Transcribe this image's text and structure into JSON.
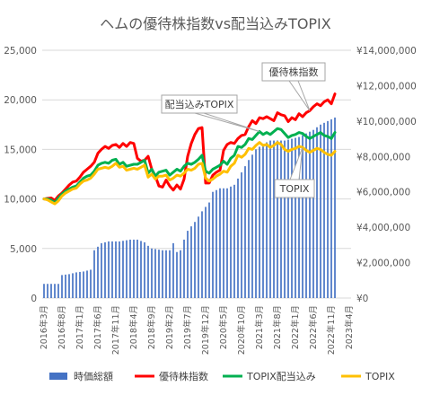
{
  "chart_data": {
    "type": "bar+line",
    "title": "ヘムの優待株指数vs配当込みTOPIX",
    "y_left": {
      "ticks": [
        "0",
        "5,000",
        "10,000",
        "15,000",
        "20,000",
        "25,000"
      ],
      "lim": [
        0,
        25000
      ]
    },
    "y_right": {
      "ticks": [
        "¥0",
        "¥2,000,000",
        "¥4,000,000",
        "¥6,000,000",
        "¥8,000,000",
        "¥10,000,000",
        "¥12,000,000",
        "¥14,000,000"
      ],
      "lim": [
        0,
        14000000
      ]
    },
    "x_labels": [
      "2016年3月",
      "2016年8月",
      "2017年1月",
      "2017年6月",
      "2017年11月",
      "2018年4月",
      "2018年9月",
      "2019年2月",
      "2019年7月",
      "2019年12月",
      "2020年5月",
      "2020年10月",
      "2021年3月",
      "2021年8月",
      "2022年1月",
      "2022年6月",
      "2022年11月",
      "2023年4月"
    ],
    "x_label_month_index": [
      0,
      5,
      10,
      15,
      20,
      25,
      30,
      35,
      40,
      45,
      50,
      55,
      60,
      65,
      70,
      75,
      80,
      85
    ],
    "bars": {
      "name": "時価総額",
      "color": "#4472C4",
      "points": [
        [
          0,
          800000
        ],
        [
          4,
          800000
        ],
        [
          5,
          1300000
        ],
        [
          7,
          1350000
        ],
        [
          9,
          1450000
        ],
        [
          11,
          1500000
        ],
        [
          13,
          1600000
        ],
        [
          14,
          2700000
        ],
        [
          16,
          3100000
        ],
        [
          18,
          3200000
        ],
        [
          21,
          3200000
        ],
        [
          24,
          3300000
        ],
        [
          26,
          3300000
        ],
        [
          28,
          3150000
        ],
        [
          29,
          2950000
        ],
        [
          30,
          2800000
        ],
        [
          33,
          2700000
        ],
        [
          35,
          2700000
        ],
        [
          36,
          3100000
        ],
        [
          37,
          2600000
        ],
        [
          38,
          2700000
        ],
        [
          39,
          3300000
        ],
        [
          40,
          3800000
        ],
        [
          42,
          4300000
        ],
        [
          44,
          4900000
        ],
        [
          46,
          5400000
        ],
        [
          47,
          6000000
        ],
        [
          48,
          6100000
        ],
        [
          49,
          6200000
        ],
        [
          51,
          6200000
        ],
        [
          53,
          6400000
        ],
        [
          55,
          7100000
        ],
        [
          57,
          7800000
        ],
        [
          59,
          8400000
        ],
        [
          61,
          8700000
        ],
        [
          63,
          8900000
        ],
        [
          65,
          8900000
        ],
        [
          67,
          8900000
        ],
        [
          69,
          9000000
        ],
        [
          71,
          9100000
        ],
        [
          73,
          9300000
        ],
        [
          75,
          9500000
        ],
        [
          77,
          9800000
        ],
        [
          79,
          10000000
        ],
        [
          80,
          10100000
        ],
        [
          81,
          10200000
        ]
      ]
    },
    "series": [
      {
        "name": "優待株指数",
        "color": "#FF0000",
        "points": [
          [
            0,
            10000
          ],
          [
            1,
            10050
          ],
          [
            2,
            10100
          ],
          [
            3,
            9850
          ],
          [
            4,
            10300
          ],
          [
            5,
            10600
          ],
          [
            6,
            11000
          ],
          [
            7,
            11400
          ],
          [
            8,
            11700
          ],
          [
            9,
            11800
          ],
          [
            10,
            12200
          ],
          [
            11,
            12700
          ],
          [
            12,
            13000
          ],
          [
            13,
            13300
          ],
          [
            14,
            13700
          ],
          [
            15,
            14600
          ],
          [
            16,
            15000
          ],
          [
            17,
            15300
          ],
          [
            18,
            15100
          ],
          [
            19,
            15400
          ],
          [
            20,
            15500
          ],
          [
            21,
            15200
          ],
          [
            22,
            15600
          ],
          [
            23,
            15300
          ],
          [
            24,
            15700
          ],
          [
            25,
            15600
          ],
          [
            26,
            14100
          ],
          [
            27,
            13800
          ],
          [
            28,
            13900
          ],
          [
            29,
            14300
          ],
          [
            30,
            13000
          ],
          [
            31,
            12300
          ],
          [
            32,
            11300
          ],
          [
            33,
            11200
          ],
          [
            34,
            11900
          ],
          [
            35,
            11300
          ],
          [
            36,
            10900
          ],
          [
            37,
            11400
          ],
          [
            38,
            11000
          ],
          [
            39,
            12000
          ],
          [
            40,
            14300
          ],
          [
            41,
            15600
          ],
          [
            42,
            16500
          ],
          [
            43,
            17100
          ],
          [
            44,
            17200
          ],
          [
            45,
            11600
          ],
          [
            46,
            11600
          ],
          [
            47,
            12400
          ],
          [
            48,
            12700
          ],
          [
            49,
            12900
          ],
          [
            50,
            14900
          ],
          [
            51,
            15500
          ],
          [
            52,
            15700
          ],
          [
            53,
            15600
          ],
          [
            54,
            16100
          ],
          [
            55,
            16400
          ],
          [
            56,
            16500
          ],
          [
            57,
            17300
          ],
          [
            58,
            17900
          ],
          [
            59,
            17600
          ],
          [
            60,
            18200
          ],
          [
            61,
            18100
          ],
          [
            62,
            18300
          ],
          [
            63,
            18100
          ],
          [
            64,
            17900
          ],
          [
            65,
            18700
          ],
          [
            66,
            18500
          ],
          [
            67,
            18400
          ],
          [
            68,
            17800
          ],
          [
            69,
            18200
          ],
          [
            70,
            18000
          ],
          [
            71,
            18600
          ],
          [
            72,
            18300
          ],
          [
            73,
            18700
          ],
          [
            74,
            18900
          ],
          [
            75,
            19300
          ],
          [
            76,
            19600
          ],
          [
            77,
            19400
          ],
          [
            78,
            19800
          ],
          [
            79,
            20000
          ],
          [
            80,
            19600
          ],
          [
            81,
            20600
          ]
        ]
      },
      {
        "name": "TOPIX配当込み",
        "color": "#00B050",
        "points": [
          [
            0,
            10000
          ],
          [
            1,
            10000
          ],
          [
            2,
            9900
          ],
          [
            3,
            9600
          ],
          [
            4,
            10100
          ],
          [
            5,
            10500
          ],
          [
            6,
            10800
          ],
          [
            7,
            11000
          ],
          [
            8,
            11200
          ],
          [
            9,
            11300
          ],
          [
            10,
            11700
          ],
          [
            11,
            12100
          ],
          [
            12,
            12300
          ],
          [
            13,
            12400
          ],
          [
            14,
            12800
          ],
          [
            15,
            13400
          ],
          [
            16,
            13600
          ],
          [
            17,
            13700
          ],
          [
            18,
            13600
          ],
          [
            19,
            13900
          ],
          [
            20,
            14000
          ],
          [
            21,
            13500
          ],
          [
            22,
            13700
          ],
          [
            23,
            13300
          ],
          [
            24,
            13400
          ],
          [
            25,
            13500
          ],
          [
            26,
            13500
          ],
          [
            27,
            13700
          ],
          [
            28,
            13900
          ],
          [
            29,
            12600
          ],
          [
            30,
            13000
          ],
          [
            31,
            12300
          ],
          [
            32,
            12700
          ],
          [
            33,
            12800
          ],
          [
            34,
            12900
          ],
          [
            35,
            12400
          ],
          [
            36,
            12700
          ],
          [
            37,
            13000
          ],
          [
            38,
            12800
          ],
          [
            39,
            13300
          ],
          [
            40,
            13600
          ],
          [
            41,
            13500
          ],
          [
            42,
            13700
          ],
          [
            43,
            14000
          ],
          [
            44,
            14400
          ],
          [
            45,
            12800
          ],
          [
            46,
            12600
          ],
          [
            47,
            13000
          ],
          [
            48,
            13200
          ],
          [
            49,
            13400
          ],
          [
            50,
            13800
          ],
          [
            51,
            13500
          ],
          [
            52,
            14100
          ],
          [
            53,
            14400
          ],
          [
            54,
            15300
          ],
          [
            55,
            15200
          ],
          [
            56,
            15500
          ],
          [
            57,
            16100
          ],
          [
            58,
            16000
          ],
          [
            59,
            16400
          ],
          [
            60,
            16800
          ],
          [
            61,
            16500
          ],
          [
            62,
            16700
          ],
          [
            63,
            16500
          ],
          [
            64,
            16800
          ],
          [
            65,
            17100
          ],
          [
            66,
            17000
          ],
          [
            67,
            16600
          ],
          [
            68,
            16200
          ],
          [
            69,
            16400
          ],
          [
            70,
            16500
          ],
          [
            71,
            16700
          ],
          [
            72,
            16600
          ],
          [
            73,
            16300
          ],
          [
            74,
            16100
          ],
          [
            75,
            16300
          ],
          [
            76,
            16500
          ],
          [
            77,
            16700
          ],
          [
            78,
            16400
          ],
          [
            79,
            16300
          ],
          [
            80,
            16100
          ],
          [
            81,
            16700
          ]
        ]
      },
      {
        "name": "TOPIX",
        "color": "#FFC000",
        "points": [
          [
            0,
            10000
          ],
          [
            1,
            9900
          ],
          [
            2,
            9700
          ],
          [
            3,
            9500
          ],
          [
            4,
            9800
          ],
          [
            5,
            10300
          ],
          [
            6,
            10600
          ],
          [
            7,
            10800
          ],
          [
            8,
            11000
          ],
          [
            9,
            11100
          ],
          [
            10,
            11500
          ],
          [
            11,
            11800
          ],
          [
            12,
            11900
          ],
          [
            13,
            12100
          ],
          [
            14,
            12500
          ],
          [
            15,
            13000
          ],
          [
            16,
            13100
          ],
          [
            17,
            13200
          ],
          [
            18,
            13100
          ],
          [
            19,
            13300
          ],
          [
            20,
            13600
          ],
          [
            21,
            13200
          ],
          [
            22,
            13300
          ],
          [
            23,
            12900
          ],
          [
            24,
            13000
          ],
          [
            25,
            13100
          ],
          [
            26,
            13000
          ],
          [
            27,
            13200
          ],
          [
            28,
            13400
          ],
          [
            29,
            12200
          ],
          [
            30,
            12500
          ],
          [
            31,
            12000
          ],
          [
            32,
            12300
          ],
          [
            33,
            12300
          ],
          [
            34,
            12400
          ],
          [
            35,
            11900
          ],
          [
            36,
            12100
          ],
          [
            37,
            12400
          ],
          [
            38,
            12300
          ],
          [
            39,
            12600
          ],
          [
            40,
            13000
          ],
          [
            41,
            12900
          ],
          [
            42,
            13100
          ],
          [
            43,
            13500
          ],
          [
            44,
            13600
          ],
          [
            45,
            12100
          ],
          [
            46,
            11800
          ],
          [
            47,
            12000
          ],
          [
            48,
            12300
          ],
          [
            49,
            12500
          ],
          [
            50,
            12800
          ],
          [
            51,
            12700
          ],
          [
            52,
            13300
          ],
          [
            53,
            13600
          ],
          [
            54,
            14400
          ],
          [
            55,
            14200
          ],
          [
            56,
            14500
          ],
          [
            57,
            15100
          ],
          [
            58,
            15000
          ],
          [
            59,
            15400
          ],
          [
            60,
            15700
          ],
          [
            61,
            15400
          ],
          [
            62,
            15500
          ],
          [
            63,
            15200
          ],
          [
            64,
            15400
          ],
          [
            65,
            15700
          ],
          [
            66,
            15500
          ],
          [
            67,
            15000
          ],
          [
            68,
            14800
          ],
          [
            69,
            15000
          ],
          [
            70,
            15100
          ],
          [
            71,
            15300
          ],
          [
            72,
            15200
          ],
          [
            73,
            14900
          ],
          [
            74,
            14700
          ],
          [
            75,
            14900
          ],
          [
            76,
            15100
          ],
          [
            77,
            15000
          ],
          [
            78,
            14700
          ],
          [
            79,
            14500
          ],
          [
            80,
            14400
          ],
          [
            81,
            14800
          ]
        ]
      }
    ],
    "callouts": [
      {
        "label": "優待株指数",
        "series": "優待株指数"
      },
      {
        "label": "配当込みTOPIX",
        "series": "TOPIX配当込み"
      },
      {
        "label": "TOPIX",
        "series": "TOPIX"
      }
    ],
    "legend": [
      "時価総額",
      "優待株指数",
      "TOPIX配当込み",
      "TOPIX"
    ],
    "legend_position": "bottom"
  }
}
